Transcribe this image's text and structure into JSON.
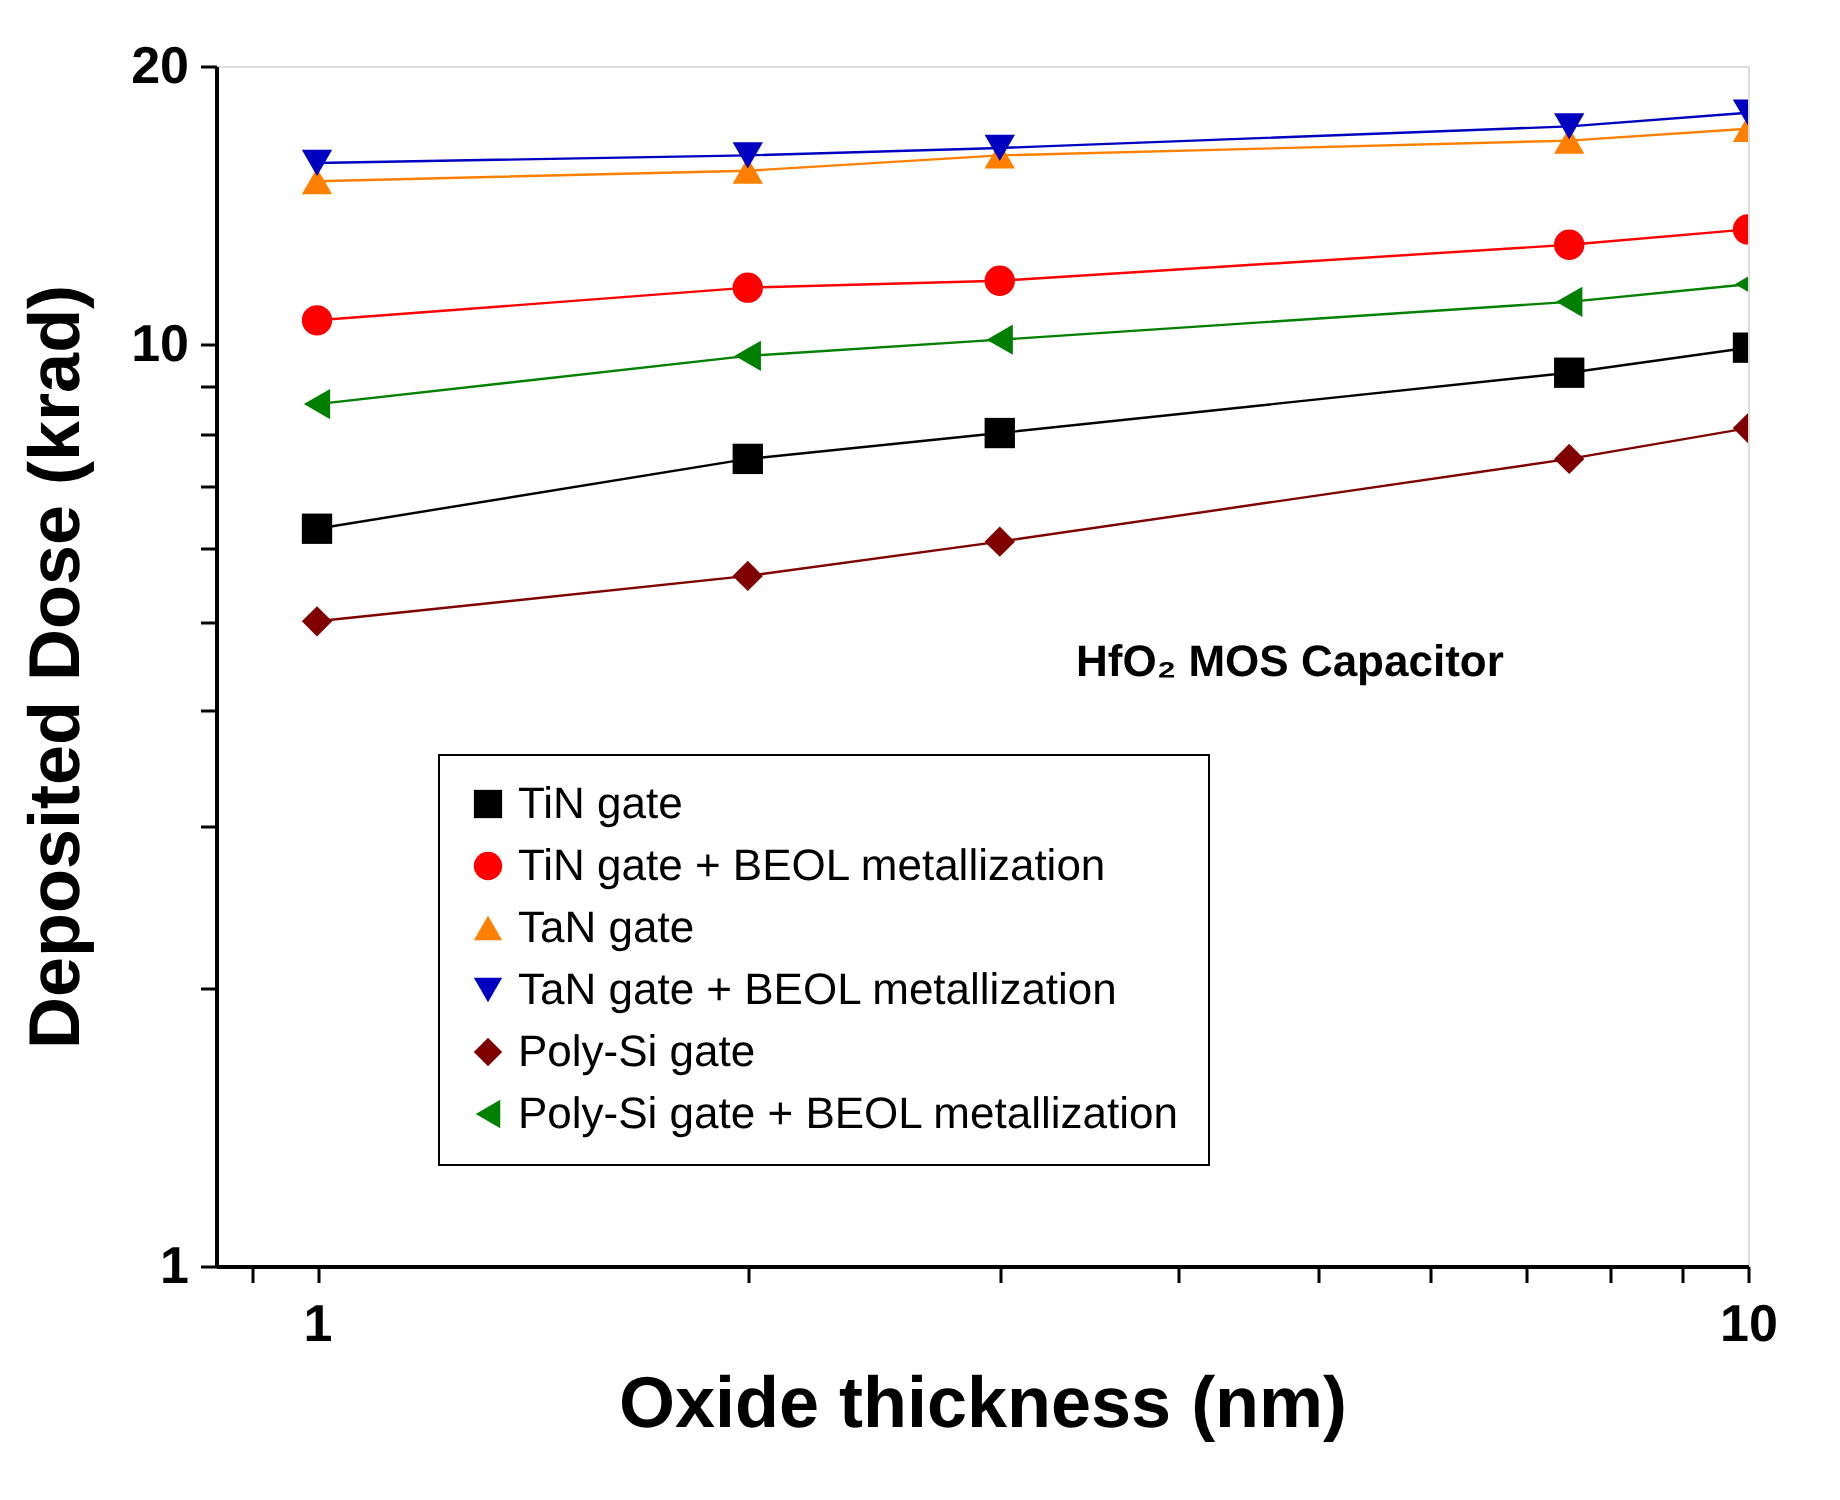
{
  "chart_data": {
    "type": "line",
    "xlabel": "Oxide thickness (nm)",
    "ylabel": "Deposited Dose (krad)",
    "log": "xy",
    "grid": false,
    "legend": "bottom",
    "line_style": "solid",
    "xlim": [
      0.85,
      10
    ],
    "ylim": [
      1,
      20
    ],
    "xticks": [
      {
        "value": 0.9,
        "label": null
      },
      1,
      {
        "value": 2,
        "label": null
      },
      {
        "value": 3,
        "label": null
      },
      {
        "value": 4,
        "label": null
      },
      {
        "value": 5,
        "label": null
      },
      {
        "value": 6,
        "label": null
      },
      {
        "value": 7,
        "label": null
      },
      {
        "value": 8,
        "label": null
      },
      {
        "value": 9,
        "label": null
      },
      10
    ],
    "yticks": [
      1,
      {
        "value": 2,
        "label": null
      },
      {
        "value": 3,
        "label": null
      },
      {
        "value": 4,
        "label": null
      },
      {
        "value": 5,
        "label": null
      },
      {
        "value": 6,
        "label": null
      },
      {
        "value": 7,
        "label": null
      },
      {
        "value": 8,
        "label": null
      },
      {
        "value": 9,
        "label": null
      },
      10,
      20
    ],
    "x": [
      1,
      2,
      3,
      7.5,
      10
    ],
    "annotations": [
      "HfO₂ MOS Capacitor"
    ],
    "series": [
      {
        "name": "TiN gate",
        "color": "#000000",
        "marker": "square",
        "values": [
          6.3,
          7.5,
          8.0,
          9.3,
          9.9
        ]
      },
      {
        "name": "TiN gate + BEOL metallization",
        "color": "#ff0000",
        "marker": "circle",
        "values": [
          10.6,
          11.5,
          11.7,
          12.8,
          13.3
        ]
      },
      {
        "name": "TaN gate",
        "color": "#ff8000",
        "marker": "triangle",
        "values": [
          15.0,
          15.4,
          16.0,
          16.6,
          17.1
        ]
      },
      {
        "name": "TaN gate + BEOL metallization",
        "color": "#0000c0",
        "marker": "triangle-down",
        "values": [
          15.7,
          16.0,
          16.3,
          17.2,
          17.8
        ]
      },
      {
        "name": "Poly-Si gate",
        "color": "#800000",
        "marker": "diamond",
        "values": [
          5.0,
          5.6,
          6.1,
          7.5,
          8.1
        ]
      },
      {
        "name": "Poly-Si gate + BEOL metallization",
        "color": "#008000",
        "marker": "triangle-left",
        "values": [
          8.6,
          9.7,
          10.1,
          11.1,
          11.6
        ]
      }
    ]
  }
}
